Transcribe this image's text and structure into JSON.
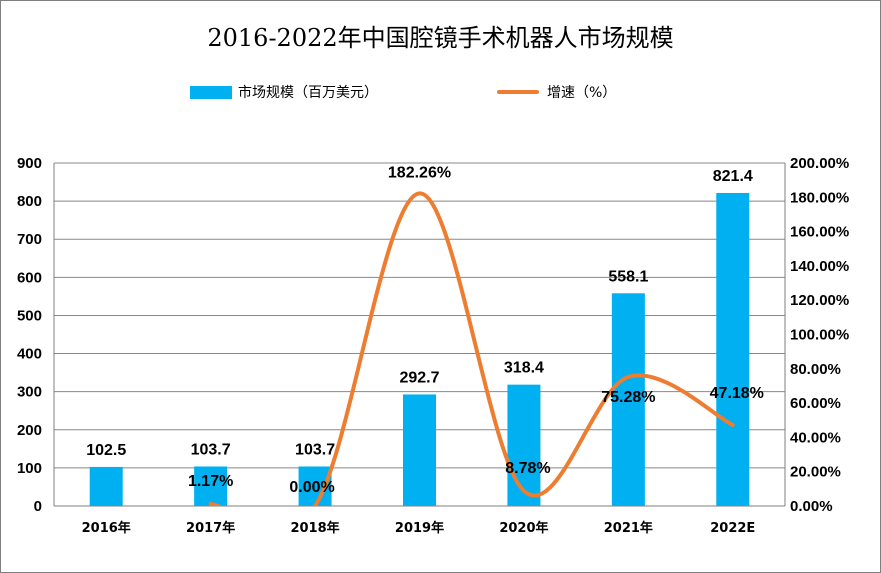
{
  "chart_data": {
    "type": "bar",
    "title": "2016-2022年中国腔镜手术机器人市场规模",
    "categories": [
      "2016年",
      "2017年",
      "2018年",
      "2019年",
      "2020年",
      "2021年",
      "2022E"
    ],
    "series": [
      {
        "name": "市场规模（百万美元）",
        "type": "bar",
        "axis": "left",
        "values": [
          102.5,
          103.7,
          103.7,
          292.7,
          318.4,
          558.1,
          821.4
        ],
        "labels": [
          "102.5",
          "103.7",
          "103.7",
          "292.7",
          "318.4",
          "558.1",
          "821.4"
        ]
      },
      {
        "name": "增速（%）",
        "type": "line",
        "smooth": true,
        "axis": "right",
        "values": [
          null,
          1.17,
          0.0,
          182.26,
          8.78,
          75.28,
          47.18
        ],
        "labels": [
          "",
          "1.17%",
          "0.00%",
          "182.26%",
          "8.78%",
          "75.28%",
          "47.18%"
        ]
      }
    ],
    "ylim": [
      0,
      900
    ],
    "y_ticks": [
      "0",
      "100",
      "200",
      "300",
      "400",
      "500",
      "600",
      "700",
      "800",
      "900"
    ],
    "y2lim": [
      0,
      200
    ],
    "y2_ticks": [
      "0.00%",
      "20.00%",
      "40.00%",
      "60.00%",
      "80.00%",
      "100.00%",
      "120.00%",
      "140.00%",
      "160.00%",
      "180.00%",
      "200.00%"
    ],
    "grid": true,
    "legend_position": "top",
    "colors": {
      "bar": "#00b0f0",
      "line": "#ed7d31",
      "grid": "#888888"
    }
  }
}
